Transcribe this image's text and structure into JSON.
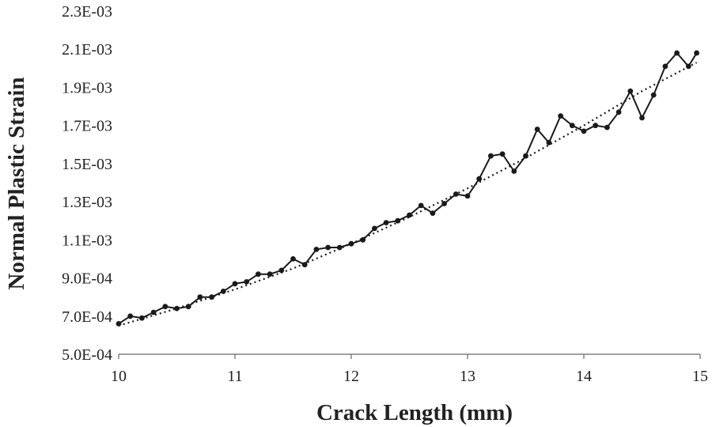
{
  "chart_data": {
    "type": "line",
    "title": "",
    "xlabel": "Crack Length (mm)",
    "ylabel": "Normal Plastic Strain",
    "xlim": [
      10,
      15
    ],
    "ylim": [
      0.0005,
      0.0023
    ],
    "x_ticks": [
      10,
      11,
      12,
      13,
      14,
      15
    ],
    "x_tick_labels": [
      "10",
      "11",
      "12",
      "13",
      "14",
      "15"
    ],
    "y_ticks": [
      0.0005,
      0.0007,
      0.0009,
      0.0011,
      0.0013,
      0.0015,
      0.0017,
      0.0019,
      0.0021,
      0.0023
    ],
    "y_tick_labels": [
      "5.0E-04",
      "7.0E-04",
      "9.0E-04",
      "1.1E-03",
      "1.3E-03",
      "1.5E-03",
      "1.7E-03",
      "1.9E-03",
      "2.1E-03",
      "2.3E-03"
    ],
    "grid": false,
    "legend": "none",
    "series": [
      {
        "style": "solid line with circle markers",
        "x": [
          10.0,
          10.1,
          10.2,
          10.3,
          10.4,
          10.5,
          10.6,
          10.7,
          10.8,
          10.9,
          11.0,
          11.1,
          11.2,
          11.3,
          11.4,
          11.5,
          11.6,
          11.7,
          11.8,
          11.9,
          12.0,
          12.1,
          12.2,
          12.3,
          12.4,
          12.5,
          12.6,
          12.7,
          12.8,
          12.9,
          13.0,
          13.1,
          13.2,
          13.3,
          13.4,
          13.5,
          13.6,
          13.7,
          13.8,
          13.9,
          14.0,
          14.1,
          14.2,
          14.3,
          14.4,
          14.5,
          14.6,
          14.7,
          14.8,
          14.9,
          14.97
        ],
        "y": [
          0.00066,
          0.0007,
          0.00069,
          0.00072,
          0.00075,
          0.00074,
          0.00075,
          0.0008,
          0.0008,
          0.00083,
          0.00087,
          0.00088,
          0.00092,
          0.00092,
          0.00094,
          0.001,
          0.00097,
          0.00105,
          0.00106,
          0.00106,
          0.00108,
          0.0011,
          0.00116,
          0.00119,
          0.0012,
          0.00123,
          0.00128,
          0.00124,
          0.00129,
          0.00134,
          0.00133,
          0.00142,
          0.00154,
          0.00155,
          0.00146,
          0.00154,
          0.00168,
          0.00161,
          0.00175,
          0.0017,
          0.00167,
          0.0017,
          0.00169,
          0.00177,
          0.00188,
          0.00174,
          0.00186,
          0.00201,
          0.00208,
          0.00201,
          0.00208
        ]
      },
      {
        "style": "dotted trendline",
        "x": [
          10.0,
          10.5,
          11.0,
          11.5,
          12.0,
          12.5,
          13.0,
          13.5,
          14.0,
          14.5,
          14.97
        ],
        "y": [
          0.00065,
          0.00074,
          0.00084,
          0.00095,
          0.00108,
          0.00122,
          0.00137,
          0.00153,
          0.0017,
          0.00188,
          0.00203
        ]
      }
    ]
  }
}
